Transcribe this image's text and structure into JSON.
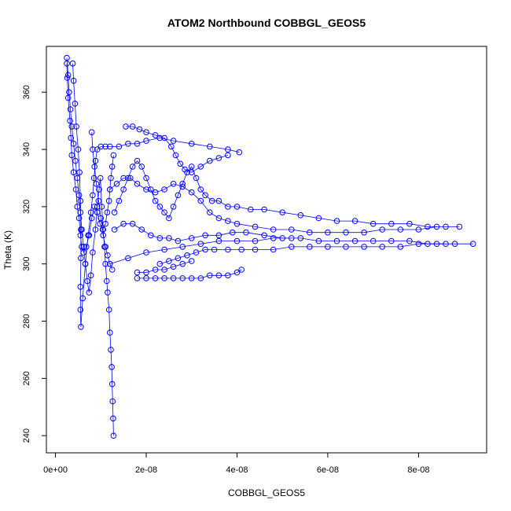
{
  "chart_data": {
    "type": "scatter",
    "title": "ATOM2 Northbound COBBGL_GEOS5",
    "xlabel": "COBBGL_GEOS5",
    "ylabel": "Theta (K)",
    "xlim": [
      -2e-09,
      9.5e-08
    ],
    "ylim": [
      234,
      376
    ],
    "x_ticks": [
      0,
      2e-08,
      4e-08,
      6e-08,
      8e-08
    ],
    "x_tick_labels": [
      "0e+00",
      "2e-08",
      "4e-08",
      "6e-08",
      "8e-08"
    ],
    "y_ticks": [
      240,
      260,
      280,
      300,
      320,
      340,
      360
    ],
    "y_tick_labels": [
      "240",
      "260",
      "280",
      "300",
      "320",
      "340",
      "360"
    ],
    "marker": "open-circle",
    "connected": true,
    "grid": false,
    "color": "#0000ff",
    "series": [
      {
        "points": [
          [
            2.5e-09,
            372
          ],
          [
            2.8e-09,
            366
          ],
          [
            3e-09,
            360
          ],
          [
            3.3e-09,
            354
          ],
          [
            3.6e-09,
            348
          ],
          [
            4e-09,
            342
          ],
          [
            4.4e-09,
            336
          ],
          [
            4.8e-09,
            330
          ],
          [
            5.2e-09,
            324
          ],
          [
            5.5e-09,
            318
          ],
          [
            5.8e-09,
            312
          ],
          [
            6.2e-09,
            306
          ],
          [
            6.6e-09,
            300
          ],
          [
            7e-09,
            294
          ],
          [
            7.4e-09,
            290
          ],
          [
            7.8e-09,
            296
          ],
          [
            8.2e-09,
            304
          ],
          [
            8.8e-09,
            312
          ],
          [
            9.2e-09,
            320
          ],
          [
            9.6e-09,
            326
          ],
          [
            9.9e-09,
            330
          ],
          [
            1.02e-08,
            320
          ],
          [
            1.05e-08,
            312
          ],
          [
            1.08e-08,
            306
          ],
          [
            1.1e-08,
            300
          ],
          [
            1.13e-08,
            294
          ],
          [
            1.15e-08,
            290
          ],
          [
            1.18e-08,
            284
          ],
          [
            1.2e-08,
            276
          ],
          [
            1.22e-08,
            270
          ],
          [
            1.24e-08,
            264
          ],
          [
            1.25e-08,
            258
          ],
          [
            1.26e-08,
            252
          ],
          [
            1.27e-08,
            246
          ],
          [
            1.28e-08,
            240
          ]
        ]
      },
      {
        "points": [
          [
            3.8e-09,
            370
          ],
          [
            4e-09,
            364
          ],
          [
            4.3e-09,
            356
          ],
          [
            4.6e-09,
            348
          ],
          [
            5e-09,
            340
          ],
          [
            5.3e-09,
            332
          ],
          [
            5.5e-09,
            322
          ],
          [
            5.6e-09,
            312
          ],
          [
            5.6e-09,
            302
          ],
          [
            5.5e-09,
            292
          ],
          [
            5.5e-09,
            284
          ],
          [
            5.6e-09,
            278
          ],
          [
            6e-09,
            288
          ],
          [
            6.6e-09,
            300
          ],
          [
            7.2e-09,
            310
          ],
          [
            7.8e-09,
            318
          ],
          [
            8.2e-09,
            324
          ],
          [
            8.5e-09,
            330
          ],
          [
            8.8e-09,
            336
          ],
          [
            9.2e-09,
            340
          ],
          [
            1e-08,
            341
          ],
          [
            1.1e-08,
            341
          ],
          [
            1.2e-08,
            341
          ],
          [
            1.4e-08,
            341
          ],
          [
            1.6e-08,
            342
          ],
          [
            1.8e-08,
            342
          ],
          [
            2e-08,
            343
          ],
          [
            2.3e-08,
            344
          ],
          [
            2.6e-08,
            343
          ],
          [
            3e-08,
            342
          ],
          [
            3.4e-08,
            341
          ],
          [
            3.8e-08,
            340
          ],
          [
            4.05e-08,
            339
          ]
        ]
      },
      {
        "points": [
          [
            8e-09,
            346
          ],
          [
            8.2e-09,
            340
          ],
          [
            8.6e-09,
            334
          ],
          [
            9e-09,
            328
          ],
          [
            9.5e-09,
            322
          ],
          [
            1e-08,
            316
          ],
          [
            1.05e-08,
            310
          ],
          [
            1.1e-08,
            306
          ],
          [
            1.15e-08,
            303
          ],
          [
            1.2e-08,
            300
          ],
          [
            1.25e-08,
            298
          ]
        ]
      },
      {
        "points": [
          [
            1.55e-08,
            348
          ],
          [
            1.7e-08,
            348
          ],
          [
            1.85e-08,
            347
          ],
          [
            2e-08,
            346
          ],
          [
            2.2e-08,
            345
          ],
          [
            2.4e-08,
            344
          ],
          [
            2.55e-08,
            341
          ],
          [
            2.65e-08,
            338
          ],
          [
            2.75e-08,
            335
          ],
          [
            2.85e-08,
            333
          ],
          [
            3e-08,
            332
          ],
          [
            3.2e-08,
            334
          ],
          [
            3.4e-08,
            336
          ],
          [
            3.6e-08,
            337
          ],
          [
            3.8e-08,
            338
          ]
        ]
      },
      {
        "points": [
          [
            1.3e-08,
            318
          ],
          [
            1.4e-08,
            322
          ],
          [
            1.5e-08,
            326
          ],
          [
            1.6e-08,
            330
          ],
          [
            1.7e-08,
            334
          ],
          [
            1.8e-08,
            336
          ],
          [
            1.9e-08,
            334
          ],
          [
            2e-08,
            330
          ],
          [
            2.1e-08,
            326
          ],
          [
            2.2e-08,
            322
          ],
          [
            2.3e-08,
            320
          ],
          [
            2.4e-08,
            318
          ],
          [
            2.5e-08,
            316
          ],
          [
            2.6e-08,
            320
          ],
          [
            2.7e-08,
            324
          ],
          [
            2.8e-08,
            328
          ],
          [
            2.9e-08,
            332
          ],
          [
            3e-08,
            334
          ],
          [
            3.1e-08,
            330
          ],
          [
            3.2e-08,
            326
          ],
          [
            3.3e-08,
            324
          ],
          [
            3.45e-08,
            322
          ],
          [
            3.6e-08,
            322
          ],
          [
            3.8e-08,
            320
          ],
          [
            4e-08,
            320
          ],
          [
            4.3e-08,
            319
          ],
          [
            4.6e-08,
            319
          ],
          [
            5e-08,
            318
          ],
          [
            5.4e-08,
            317
          ],
          [
            5.8e-08,
            316
          ],
          [
            6.2e-08,
            315
          ],
          [
            6.6e-08,
            315
          ],
          [
            7e-08,
            314
          ],
          [
            7.4e-08,
            314
          ],
          [
            7.8e-08,
            314
          ],
          [
            8.2e-08,
            313
          ],
          [
            8.6e-08,
            313
          ],
          [
            8.9e-08,
            313
          ]
        ]
      },
      {
        "points": [
          [
            1.2e-08,
            326
          ],
          [
            1.35e-08,
            328
          ],
          [
            1.5e-08,
            330
          ],
          [
            1.65e-08,
            330
          ],
          [
            1.8e-08,
            328
          ],
          [
            2e-08,
            326
          ],
          [
            2.2e-08,
            325
          ],
          [
            2.4e-08,
            326
          ],
          [
            2.6e-08,
            328
          ],
          [
            2.8e-08,
            327
          ],
          [
            3e-08,
            325
          ],
          [
            3.2e-08,
            322
          ],
          [
            3.4e-08,
            318
          ],
          [
            3.6e-08,
            316
          ],
          [
            3.8e-08,
            315
          ],
          [
            4e-08,
            314
          ],
          [
            4.4e-08,
            313
          ],
          [
            4.8e-08,
            312
          ],
          [
            5.2e-08,
            312
          ],
          [
            5.6e-08,
            311
          ],
          [
            6e-08,
            311
          ],
          [
            6.4e-08,
            311
          ],
          [
            6.8e-08,
            311
          ],
          [
            7.2e-08,
            312
          ],
          [
            7.6e-08,
            312
          ],
          [
            8e-08,
            312
          ],
          [
            8.4e-08,
            313
          ]
        ]
      },
      {
        "points": [
          [
            1.3e-08,
            312
          ],
          [
            1.5e-08,
            314
          ],
          [
            1.7e-08,
            314
          ],
          [
            1.9e-08,
            312
          ],
          [
            2.1e-08,
            310
          ],
          [
            2.3e-08,
            309
          ],
          [
            2.5e-08,
            309
          ],
          [
            2.7e-08,
            308
          ],
          [
            3e-08,
            309
          ],
          [
            3.3e-08,
            310
          ],
          [
            3.6e-08,
            310
          ],
          [
            3.9e-08,
            311
          ],
          [
            4.2e-08,
            311
          ],
          [
            4.6e-08,
            310
          ],
          [
            5e-08,
            309
          ],
          [
            5.4e-08,
            309
          ],
          [
            5.8e-08,
            308
          ],
          [
            6.2e-08,
            308
          ],
          [
            6.6e-08,
            308
          ],
          [
            7e-08,
            308
          ],
          [
            7.4e-08,
            308
          ],
          [
            7.8e-08,
            308
          ],
          [
            8.2e-08,
            307
          ],
          [
            8.6e-08,
            307
          ]
        ]
      },
      {
        "points": [
          [
            2.3e-08,
            300
          ],
          [
            2.5e-08,
            301
          ],
          [
            2.7e-08,
            302
          ],
          [
            2.9e-08,
            303
          ],
          [
            3.1e-08,
            304
          ],
          [
            3.3e-08,
            305
          ],
          [
            3.5e-08,
            305
          ],
          [
            3.8e-08,
            305
          ],
          [
            4.1e-08,
            305
          ],
          [
            4.4e-08,
            305
          ],
          [
            4.8e-08,
            305
          ],
          [
            5.2e-08,
            306
          ],
          [
            5.6e-08,
            306
          ],
          [
            6e-08,
            306
          ],
          [
            6.4e-08,
            306
          ],
          [
            6.8e-08,
            306
          ],
          [
            7.2e-08,
            306
          ],
          [
            7.6e-08,
            306
          ],
          [
            8e-08,
            307
          ],
          [
            8.4e-08,
            307
          ],
          [
            8.8e-08,
            307
          ],
          [
            9.2e-08,
            307
          ]
        ]
      },
      {
        "points": [
          [
            1.2e-08,
            300
          ],
          [
            1.6e-08,
            302
          ],
          [
            2e-08,
            304
          ],
          [
            2.4e-08,
            305
          ],
          [
            2.8e-08,
            306
          ],
          [
            3.2e-08,
            307
          ],
          [
            3.6e-08,
            308
          ],
          [
            4e-08,
            308
          ],
          [
            4.4e-08,
            308
          ],
          [
            4.8e-08,
            309
          ],
          [
            5.2e-08,
            309
          ]
        ]
      },
      {
        "points": [
          [
            1.8e-08,
            297
          ],
          [
            2e-08,
            297
          ],
          [
            2.2e-08,
            298
          ],
          [
            2.4e-08,
            298
          ],
          [
            2.6e-08,
            299
          ],
          [
            2.8e-08,
            300
          ],
          [
            3e-08,
            301
          ]
        ]
      },
      {
        "points": [
          [
            1.8e-08,
            295
          ],
          [
            2e-08,
            295
          ],
          [
            2.2e-08,
            295
          ],
          [
            2.4e-08,
            295
          ],
          [
            2.6e-08,
            295
          ],
          [
            2.8e-08,
            295
          ],
          [
            3e-08,
            295
          ],
          [
            3.2e-08,
            295
          ],
          [
            3.4e-08,
            296
          ],
          [
            3.6e-08,
            296
          ],
          [
            3.8e-08,
            296
          ],
          [
            4e-08,
            297
          ],
          [
            4.1e-08,
            298
          ]
        ]
      },
      {
        "points": [
          [
            2.5e-09,
            370
          ],
          [
            2.6e-09,
            365
          ],
          [
            2.8e-09,
            358
          ],
          [
            3.2e-09,
            350
          ],
          [
            3.4e-09,
            344
          ],
          [
            3.6e-09,
            338
          ],
          [
            4e-09,
            332
          ],
          [
            4.5e-09,
            326
          ],
          [
            4.8e-09,
            320
          ],
          [
            5.2e-09,
            316
          ],
          [
            5.5e-09,
            310
          ],
          [
            5.8e-09,
            306
          ],
          [
            6.2e-09,
            304
          ],
          [
            6.8e-09,
            306
          ],
          [
            7.4e-09,
            310
          ],
          [
            8e-09,
            316
          ],
          [
            8.6e-09,
            320
          ],
          [
            9.2e-09,
            318
          ],
          [
            9.8e-09,
            314
          ],
          [
            1.04e-08,
            312
          ],
          [
            1.1e-08,
            314
          ],
          [
            1.14e-08,
            318
          ],
          [
            1.18e-08,
            322
          ],
          [
            1.2e-08,
            326
          ],
          [
            1.22e-08,
            330
          ],
          [
            1.25e-08,
            334
          ],
          [
            1.28e-08,
            338
          ]
        ]
      }
    ]
  }
}
